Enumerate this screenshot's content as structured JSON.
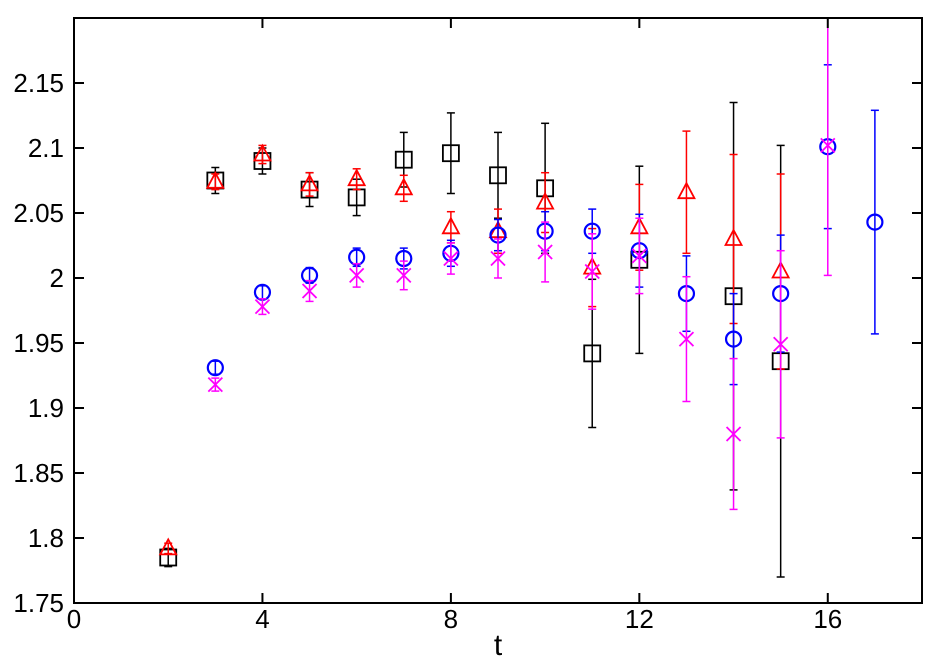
{
  "chart_data": {
    "type": "scatter",
    "xlabel": "t",
    "ylabel": "",
    "xlim": [
      0,
      18
    ],
    "ylim": [
      1.75,
      2.2
    ],
    "xticks": [
      "0",
      "4",
      "8",
      "12",
      "16"
    ],
    "yticks": [
      "1.75",
      "1.8",
      "1.85",
      "1.9",
      "1.95",
      "2",
      "2.05",
      "2.1",
      "2.15"
    ],
    "grid": false,
    "series": [
      {
        "marker": "square",
        "color": "#000000",
        "x": [
          2,
          3,
          4,
          5,
          6,
          7,
          8,
          9,
          10,
          11,
          12,
          14,
          15
        ],
        "y": [
          1.785,
          2.075,
          2.09,
          2.068,
          2.062,
          2.091,
          2.096,
          2.079,
          2.069,
          1.942,
          2.014,
          1.986,
          1.936
        ],
        "err": [
          0.007,
          0.01,
          0.01,
          0.013,
          0.014,
          0.021,
          0.031,
          0.033,
          0.05,
          0.057,
          0.072,
          0.149,
          0.166
        ]
      },
      {
        "marker": "triangle",
        "color": "#ff0000",
        "x": [
          2,
          3,
          4,
          5,
          6,
          7,
          8,
          9,
          10,
          11,
          12,
          13,
          14,
          15
        ],
        "y": [
          1.792,
          2.074,
          2.095,
          2.072,
          2.076,
          2.069,
          2.039,
          2.036,
          2.058,
          2.008,
          2.039,
          2.066,
          2.03,
          2.005
        ],
        "err": [
          0.004,
          0.006,
          0.007,
          0.009,
          0.008,
          0.01,
          0.012,
          0.017,
          0.023,
          0.03,
          0.033,
          0.047,
          0.065,
          0.075
        ]
      },
      {
        "marker": "circle",
        "color": "#0000ff",
        "x": [
          3,
          4,
          5,
          6,
          7,
          8,
          9,
          10,
          11,
          12,
          13,
          14,
          15,
          16,
          17
        ],
        "y": [
          1.931,
          1.989,
          2.002,
          2.016,
          2.015,
          2.019,
          2.033,
          2.036,
          2.036,
          2.021,
          1.988,
          1.953,
          1.988,
          2.101,
          2.043
        ],
        "err": [
          0.005,
          0.005,
          0.006,
          0.007,
          0.008,
          0.01,
          0.012,
          0.015,
          0.017,
          0.028,
          0.029,
          0.035,
          0.045,
          0.063,
          0.086
        ]
      },
      {
        "marker": "x",
        "color": "#ff00ff",
        "x": [
          3,
          4,
          5,
          6,
          7,
          8,
          9,
          10,
          11,
          12,
          13,
          14,
          15,
          16
        ],
        "y": [
          1.918,
          1.978,
          1.99,
          2.002,
          2.002,
          2.015,
          2.015,
          2.02,
          2.005,
          2.017,
          1.953,
          1.88,
          1.949,
          2.102
        ],
        "err": [
          0.005,
          0.006,
          0.008,
          0.009,
          0.011,
          0.012,
          0.015,
          0.023,
          0.029,
          0.029,
          0.048,
          0.058,
          0.072,
          0.1
        ]
      }
    ]
  }
}
